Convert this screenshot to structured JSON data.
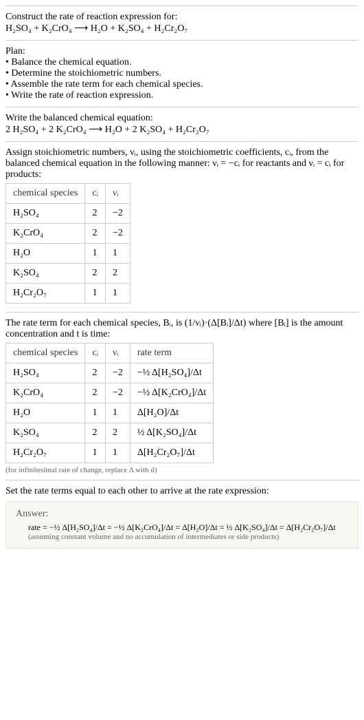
{
  "intro": {
    "line1": "Construct the rate of reaction expression for:",
    "equation": "H₂SO₄ + K₂CrO₄ ⟶ H₂O + K₂SO₄ + H₂Cr₂O₇"
  },
  "plan": {
    "title": "Plan:",
    "items": [
      "• Balance the chemical equation.",
      "• Determine the stoichiometric numbers.",
      "• Assemble the rate term for each chemical species.",
      "• Write the rate of reaction expression."
    ]
  },
  "balanced": {
    "title": "Write the balanced chemical equation:",
    "equation": "2 H₂SO₄ + 2 K₂CrO₄ ⟶ H₂O + 2 K₂SO₄ + H₂Cr₂O₇"
  },
  "stoich": {
    "intro": "Assign stoichiometric numbers, νᵢ, using the stoichiometric coefficients, cᵢ, from the balanced chemical equation in the following manner: νᵢ = −cᵢ for reactants and νᵢ = cᵢ for products:",
    "table": {
      "headers": [
        "chemical species",
        "cᵢ",
        "νᵢ"
      ],
      "rows": [
        [
          "H₂SO₄",
          "2",
          "−2"
        ],
        [
          "K₂CrO₄",
          "2",
          "−2"
        ],
        [
          "H₂O",
          "1",
          "1"
        ],
        [
          "K₂SO₄",
          "2",
          "2"
        ],
        [
          "H₂Cr₂O₇",
          "1",
          "1"
        ]
      ]
    }
  },
  "rateterm": {
    "intro_a": "The rate term for each chemical species, Bᵢ, is ",
    "intro_b": " where [Bᵢ] is the amount concentration and t is time:",
    "formula": "(1/νᵢ)·(Δ[Bᵢ]/Δt)",
    "table": {
      "headers": [
        "chemical species",
        "cᵢ",
        "νᵢ",
        "rate term"
      ],
      "rows": [
        [
          "H₂SO₄",
          "2",
          "−2",
          "−½ Δ[H₂SO₄]/Δt"
        ],
        [
          "K₂CrO₄",
          "2",
          "−2",
          "−½ Δ[K₂CrO₄]/Δt"
        ],
        [
          "H₂O",
          "1",
          "1",
          "Δ[H₂O]/Δt"
        ],
        [
          "K₂SO₄",
          "2",
          "2",
          "½ Δ[K₂SO₄]/Δt"
        ],
        [
          "H₂Cr₂O₇",
          "1",
          "1",
          "Δ[H₂Cr₂O₇]/Δt"
        ]
      ]
    },
    "note": "(for infinitesimal rate of change, replace Δ with d)"
  },
  "final": {
    "title": "Set the rate terms equal to each other to arrive at the rate expression:",
    "answer_label": "Answer:",
    "rate_expr": "rate = −½ Δ[H₂SO₄]/Δt = −½ Δ[K₂CrO₄]/Δt = Δ[H₂O]/Δt = ½ Δ[K₂SO₄]/Δt = Δ[H₂Cr₂O₇]/Δt",
    "assumption": "(assuming constant volume and no accumulation of intermediates or side products)"
  }
}
